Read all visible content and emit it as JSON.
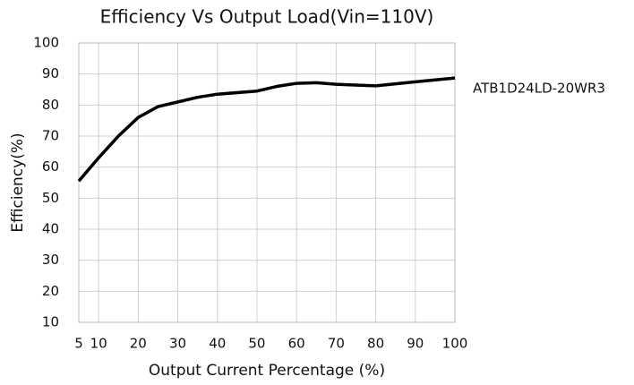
{
  "chart_data": {
    "type": "line",
    "title": "Efficiency Vs Output Load(Vin=110V)",
    "x_label": "Output Current Percentage (%)",
    "y_label": "Efficiency(%)",
    "x": [
      5,
      10,
      15,
      20,
      25,
      30,
      35,
      40,
      50,
      55,
      60,
      65,
      70,
      80,
      90,
      100
    ],
    "series": [
      {
        "name": "ATB1D24LD-20WR3",
        "color": "#000000",
        "values": [
          55.5,
          63,
          70,
          76,
          79.5,
          81,
          82.5,
          83.5,
          84.5,
          86,
          87,
          87.2,
          86.7,
          86.2,
          87.5,
          88.7
        ]
      }
    ],
    "xlim": [
      5,
      100
    ],
    "xticks": [
      5,
      10,
      20,
      30,
      40,
      50,
      60,
      70,
      80,
      90,
      100
    ],
    "ylim": [
      10,
      100
    ],
    "yticks": [
      10,
      20,
      30,
      40,
      50,
      60,
      70,
      80,
      90,
      100
    ],
    "grid": true
  }
}
